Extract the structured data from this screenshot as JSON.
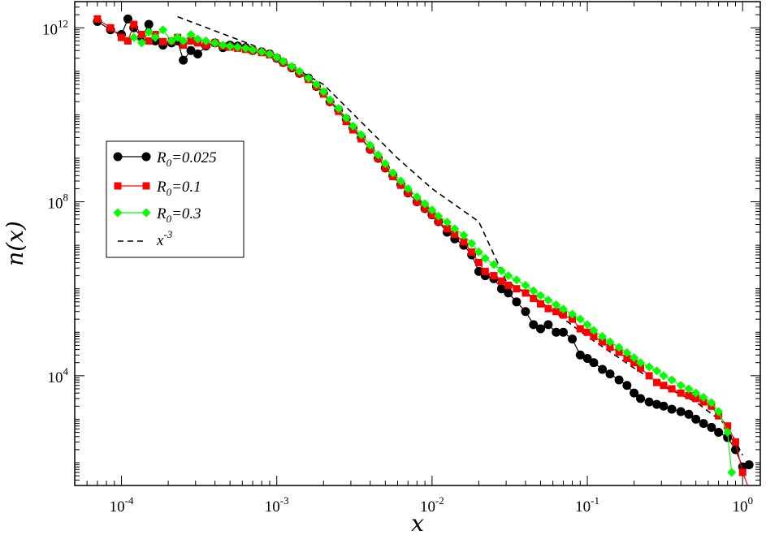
{
  "chart_data": {
    "type": "line",
    "xlabel": "x",
    "ylabel": "n(x)",
    "xscale": "log",
    "yscale": "log",
    "xlim": [
      5e-05,
      1.3
    ],
    "ylim": [
      30,
      4000000000000.0
    ],
    "grid": false,
    "legend_position": "upper-left",
    "x_ticks": [
      {
        "value": 0.0001,
        "base": "10",
        "exp": "-4"
      },
      {
        "value": 0.001,
        "base": "10",
        "exp": "-3"
      },
      {
        "value": 0.01,
        "base": "10",
        "exp": "-2"
      },
      {
        "value": 0.1,
        "base": "10",
        "exp": "-1"
      },
      {
        "value": 1,
        "base": "10",
        "exp": "0"
      }
    ],
    "y_ticks": [
      {
        "value": 10000,
        "base": "10",
        "exp": "4"
      },
      {
        "value": 100000000,
        "base": "10",
        "exp": "8"
      },
      {
        "value": 1000000000000,
        "base": "10",
        "exp": "12"
      }
    ],
    "series": [
      {
        "legend_name": "R",
        "legend_sub": "0",
        "legend_rest": "=0.025",
        "color": "#000000",
        "marker": "circle",
        "points": [
          [
            7e-05,
            1400000000000.0
          ],
          [
            8.5e-05,
            900000000000.0
          ],
          [
            0.0001,
            700000000000.0
          ],
          [
            0.00011,
            1600000000000.0
          ],
          [
            0.00012,
            1000000000000.0
          ],
          [
            0.000135,
            600000000000.0
          ],
          [
            0.00015,
            1200000000000.0
          ],
          [
            0.000165,
            500000000000.0
          ],
          [
            0.000185,
            400000000000.0
          ],
          [
            0.00021,
            450000000000.0
          ],
          [
            0.00023,
            500000000000.0
          ],
          [
            0.00025,
            180000000000.0
          ],
          [
            0.00028,
            300000000000.0
          ],
          [
            0.00031,
            250000000000.0
          ],
          [
            0.00035,
            380000000000.0
          ],
          [
            0.0004,
            450000000000.0
          ],
          [
            0.00045,
            350000000000.0
          ],
          [
            0.0005,
            400000000000.0
          ],
          [
            0.00056,
            380000000000.0
          ],
          [
            0.00063,
            350000000000.0
          ],
          [
            0.0007,
            300000000000.0
          ],
          [
            0.0008,
            280000000000.0
          ],
          [
            0.0009,
            250000000000.0
          ],
          [
            0.001,
            200000000000.0
          ],
          [
            0.0011,
            160000000000.0
          ],
          [
            0.00125,
            120000000000.0
          ],
          [
            0.0014,
            90000000000.0
          ],
          [
            0.0016,
            70000000000.0
          ],
          [
            0.0018,
            45000000000.0
          ],
          [
            0.002,
            32000000000.0
          ],
          [
            0.0022,
            20000000000.0
          ],
          [
            0.0025,
            13000000000.0
          ],
          [
            0.0028,
            8000000000.0
          ],
          [
            0.0031,
            5000000000.0
          ],
          [
            0.0035,
            3000000000.0
          ],
          [
            0.004,
            1600000000.0
          ],
          [
            0.0045,
            1000000000.0
          ],
          [
            0.005,
            600000000.0
          ],
          [
            0.0056,
            400000000.0
          ],
          [
            0.0063,
            250000000.0
          ],
          [
            0.007,
            160000000.0
          ],
          [
            0.008,
            100000000.0
          ],
          [
            0.009,
            70000000.0
          ],
          [
            0.01,
            50000000.0
          ],
          [
            0.011,
            35000000.0
          ],
          [
            0.0125,
            20000000.0
          ],
          [
            0.014,
            14000000.0
          ],
          [
            0.016,
            10000000.0
          ],
          [
            0.018,
            6000000.0
          ],
          [
            0.02,
            2500000.0
          ],
          [
            0.022,
            2000000.0
          ],
          [
            0.025,
            1700000.0
          ],
          [
            0.028,
            1000000.0
          ],
          [
            0.031,
            800000.0
          ],
          [
            0.035,
            500000.0
          ],
          [
            0.04,
            300000.0
          ],
          [
            0.045,
            150000.0
          ],
          [
            0.05,
            120000.0
          ],
          [
            0.056,
            150000.0
          ],
          [
            0.063,
            100000.0
          ],
          [
            0.07,
            100000.0
          ],
          [
            0.08,
            70000.0
          ],
          [
            0.09,
            30000.0
          ],
          [
            0.1,
            25000.0
          ],
          [
            0.11,
            20000.0
          ],
          [
            0.125,
            14000.0
          ],
          [
            0.14,
            11000.0
          ],
          [
            0.16,
            8000.0
          ],
          [
            0.18,
            6000.0
          ],
          [
            0.2,
            4000.0
          ],
          [
            0.22,
            3000.0
          ],
          [
            0.25,
            2500.0
          ],
          [
            0.28,
            2200.0
          ],
          [
            0.31,
            2000.0
          ],
          [
            0.35,
            1700.0
          ],
          [
            0.4,
            1500.0
          ],
          [
            0.45,
            1300.0
          ],
          [
            0.5,
            1000.0
          ],
          [
            0.56,
            800
          ],
          [
            0.63,
            650
          ],
          [
            0.7,
            500
          ],
          [
            0.8,
            380
          ],
          [
            0.9,
            200
          ],
          [
            1,
            80
          ],
          [
            1.1,
            90
          ]
        ]
      },
      {
        "legend_name": "R",
        "legend_sub": "0",
        "legend_rest": "=0.1",
        "color": "#ff0000",
        "marker": "square",
        "points": [
          [
            7e-05,
            1600000000000.0
          ],
          [
            8.5e-05,
            1000000000000.0
          ],
          [
            0.0001,
            600000000000.0
          ],
          [
            0.00011,
            500000000000.0
          ],
          [
            0.00012,
            1200000000000.0
          ],
          [
            0.000135,
            700000000000.0
          ],
          [
            0.00015,
            500000000000.0
          ],
          [
            0.000165,
            700000000000.0
          ],
          [
            0.000185,
            480000000000.0
          ],
          [
            0.00021,
            500000000000.0
          ],
          [
            0.00023,
            600000000000.0
          ],
          [
            0.00025,
            400000000000.0
          ],
          [
            0.00028,
            500000000000.0
          ],
          [
            0.00031,
            450000000000.0
          ],
          [
            0.00035,
            400000000000.0
          ],
          [
            0.0004,
            450000000000.0
          ],
          [
            0.00045,
            380000000000.0
          ],
          [
            0.0005,
            360000000000.0
          ],
          [
            0.00056,
            340000000000.0
          ],
          [
            0.00063,
            320000000000.0
          ],
          [
            0.0007,
            300000000000.0
          ],
          [
            0.0008,
            270000000000.0
          ],
          [
            0.0009,
            240000000000.0
          ],
          [
            0.001,
            200000000000.0
          ],
          [
            0.0011,
            160000000000.0
          ],
          [
            0.00125,
            120000000000.0
          ],
          [
            0.0014,
            90000000000.0
          ],
          [
            0.0016,
            65000000000.0
          ],
          [
            0.0018,
            45000000000.0
          ],
          [
            0.002,
            30000000000.0
          ],
          [
            0.0022,
            20000000000.0
          ],
          [
            0.0025,
            12000000000.0
          ],
          [
            0.0028,
            7000000000.0
          ],
          [
            0.0031,
            4500000000.0
          ],
          [
            0.0035,
            2800000000.0
          ],
          [
            0.004,
            1600000000.0
          ],
          [
            0.0045,
            1000000000.0
          ],
          [
            0.005,
            600000000.0
          ],
          [
            0.0056,
            380000000.0
          ],
          [
            0.0063,
            240000000.0
          ],
          [
            0.007,
            160000000.0
          ],
          [
            0.008,
            100000000.0
          ],
          [
            0.009,
            70000000.0
          ],
          [
            0.01,
            50000000.0
          ],
          [
            0.011,
            35000000.0
          ],
          [
            0.0125,
            24000000.0
          ],
          [
            0.014,
            18000000.0
          ],
          [
            0.016,
            12000000.0
          ],
          [
            0.018,
            7000000.0
          ],
          [
            0.02,
            4000000.0
          ],
          [
            0.022,
            2500000.0
          ],
          [
            0.025,
            2000000.0
          ],
          [
            0.028,
            1500000.0
          ],
          [
            0.031,
            1200000.0
          ],
          [
            0.035,
            1000000.0
          ],
          [
            0.04,
            800000.0
          ],
          [
            0.045,
            600000.0
          ],
          [
            0.05,
            450000.0
          ],
          [
            0.056,
            350000.0
          ],
          [
            0.063,
            300000.0
          ],
          [
            0.07,
            250000.0
          ],
          [
            0.08,
            200000.0
          ],
          [
            0.09,
            120000.0
          ],
          [
            0.1,
            100000.0
          ],
          [
            0.11,
            80000.0
          ],
          [
            0.125,
            60000.0
          ],
          [
            0.14,
            45000.0
          ],
          [
            0.16,
            35000.0
          ],
          [
            0.18,
            25000.0
          ],
          [
            0.2,
            20000.0
          ],
          [
            0.22,
            15000.0
          ],
          [
            0.25,
            10000.0
          ],
          [
            0.28,
            7000.0
          ],
          [
            0.31,
            6000.0
          ],
          [
            0.35,
            5000.0
          ],
          [
            0.4,
            4000.0
          ],
          [
            0.45,
            3500.0
          ],
          [
            0.5,
            3000.0
          ],
          [
            0.56,
            2500.0
          ],
          [
            0.63,
            2000.0
          ],
          [
            0.7,
            1200.0
          ],
          [
            0.8,
            700
          ],
          [
            0.9,
            300
          ],
          [
            1,
            60
          ],
          [
            1.1,
            25
          ]
        ]
      },
      {
        "legend_name": "R",
        "legend_sub": "0",
        "legend_rest": "=0.3",
        "color": "#00ff00",
        "marker": "diamond",
        "points": [
          [
            0.00012,
            600000000000.0
          ],
          [
            0.000135,
            450000000000.0
          ],
          [
            0.00015,
            800000000000.0
          ],
          [
            0.000165,
            600000000000.0
          ],
          [
            0.000185,
            900000000000.0
          ],
          [
            0.00021,
            500000000000.0
          ],
          [
            0.00023,
            600000000000.0
          ],
          [
            0.00025,
            500000000000.0
          ],
          [
            0.00028,
            700000000000.0
          ],
          [
            0.00031,
            550000000000.0
          ],
          [
            0.00035,
            500000000000.0
          ],
          [
            0.0004,
            450000000000.0
          ],
          [
            0.00045,
            400000000000.0
          ],
          [
            0.0005,
            380000000000.0
          ],
          [
            0.00056,
            360000000000.0
          ],
          [
            0.00063,
            340000000000.0
          ],
          [
            0.0007,
            310000000000.0
          ],
          [
            0.0008,
            280000000000.0
          ],
          [
            0.0009,
            250000000000.0
          ],
          [
            0.001,
            210000000000.0
          ],
          [
            0.0011,
            170000000000.0
          ],
          [
            0.00125,
            130000000000.0
          ],
          [
            0.0014,
            100000000000.0
          ],
          [
            0.0016,
            70000000000.0
          ],
          [
            0.0018,
            50000000000.0
          ],
          [
            0.002,
            34000000000.0
          ],
          [
            0.0022,
            22000000000.0
          ],
          [
            0.0025,
            14000000000.0
          ],
          [
            0.0028,
            8500000000.0
          ],
          [
            0.0031,
            5500000000.0
          ],
          [
            0.0035,
            3500000000.0
          ],
          [
            0.004,
            2000000000.0
          ],
          [
            0.0045,
            1200000000.0
          ],
          [
            0.005,
            750000000.0
          ],
          [
            0.0056,
            460000000.0
          ],
          [
            0.0063,
            300000000.0
          ],
          [
            0.007,
            200000000.0
          ],
          [
            0.008,
            130000000.0
          ],
          [
            0.009,
            90000000.0
          ],
          [
            0.01,
            65000000.0
          ],
          [
            0.011,
            47000000.0
          ],
          [
            0.0125,
            34000000.0
          ],
          [
            0.014,
            24000000.0
          ],
          [
            0.016,
            17000000.0
          ],
          [
            0.018,
            11000000.0
          ],
          [
            0.02,
            7000000.0
          ],
          [
            0.022,
            5000000.0
          ],
          [
            0.025,
            3600000.0
          ],
          [
            0.028,
            2600000.0
          ],
          [
            0.031,
            2000000.0
          ],
          [
            0.035,
            1600000.0
          ],
          [
            0.04,
            1200000.0
          ],
          [
            0.045,
            900000.0
          ],
          [
            0.05,
            700000.0
          ],
          [
            0.056,
            550000.0
          ],
          [
            0.063,
            430000.0
          ],
          [
            0.07,
            340000.0
          ],
          [
            0.08,
            260000.0
          ],
          [
            0.09,
            200000.0
          ],
          [
            0.1,
            150000.0
          ],
          [
            0.11,
            110000.0
          ],
          [
            0.125,
            80000.0
          ],
          [
            0.14,
            60000.0
          ],
          [
            0.16,
            45000.0
          ],
          [
            0.18,
            34000.0
          ],
          [
            0.2,
            26000.0
          ],
          [
            0.22,
            20000.0
          ],
          [
            0.25,
            16000.0
          ],
          [
            0.28,
            13000.0
          ],
          [
            0.31,
            10000.0
          ],
          [
            0.35,
            8000.0
          ],
          [
            0.4,
            6000.0
          ],
          [
            0.45,
            5000.0
          ],
          [
            0.5,
            4000.0
          ],
          [
            0.56,
            3200.0
          ],
          [
            0.63,
            2400.0
          ],
          [
            0.7,
            1500.0
          ],
          [
            0.8,
            500
          ],
          [
            0.85,
            60
          ]
        ]
      }
    ],
    "reference_line": {
      "legend_base": "x",
      "legend_exp": "-3",
      "color": "#000000",
      "style": "dashed",
      "points": [
        [
          0.00023,
          1800000000000.0
        ],
        [
          0.0007,
          400000000000.0
        ],
        [
          0.002,
          50000000000.0
        ],
        [
          0.006,
          1000000000.0
        ],
        [
          0.01,
          200000000.0
        ],
        [
          0.02,
          35000000.0
        ],
        [
          0.03,
          1500000.0
        ],
        [
          0.05,
          500000.0
        ],
        [
          0.1,
          80000.0
        ],
        [
          0.2,
          15000.0
        ],
        [
          0.3,
          6000.0
        ],
        [
          0.5,
          2500.0
        ],
        [
          0.8,
          700
        ],
        [
          1,
          150
        ]
      ]
    }
  }
}
